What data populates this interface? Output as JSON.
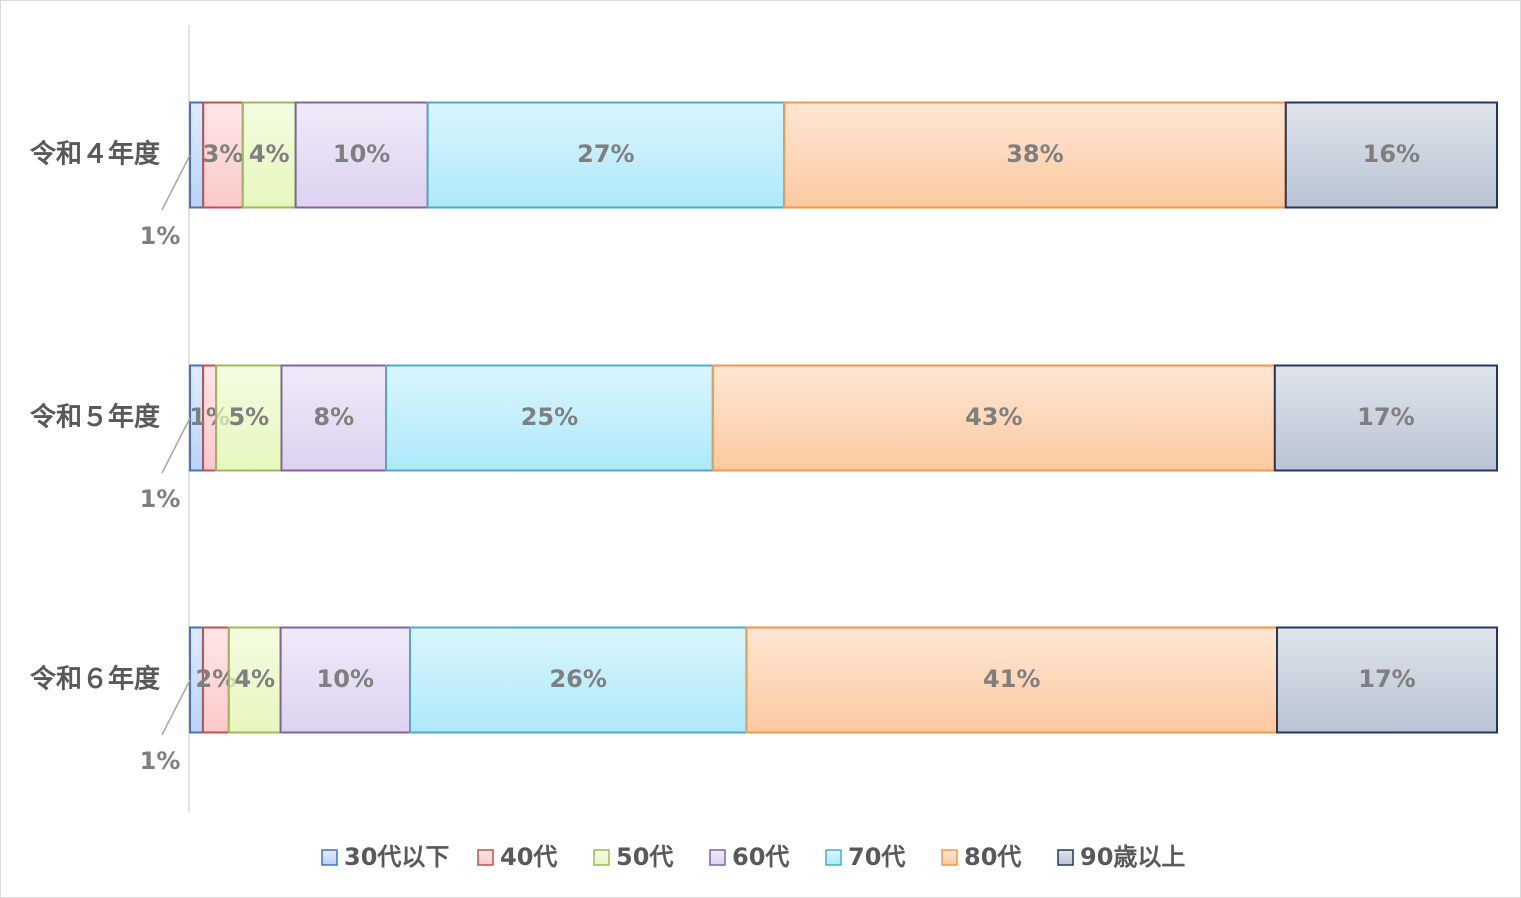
{
  "chart_data": {
    "type": "bar",
    "orientation": "horizontal",
    "stack": "percent",
    "categories": [
      "令和４年度",
      "令和５年度",
      "令和６年度"
    ],
    "series": [
      {
        "name": "30代以下",
        "color": "#4472c4",
        "fill": "#bcd3f5",
        "values": [
          1,
          1,
          1
        ],
        "value_labels": [
          "1%",
          "1%",
          "1%"
        ]
      },
      {
        "name": "40代",
        "color": "#c0504d",
        "fill": "#fcc9c9",
        "values": [
          3,
          1,
          2
        ],
        "value_labels": [
          "3%",
          "1%",
          "2%"
        ]
      },
      {
        "name": "50代",
        "color": "#9bbb59",
        "fill": "#e6f7bd",
        "values": [
          4,
          5,
          4
        ],
        "value_labels": [
          "4%",
          "5%",
          "4%"
        ]
      },
      {
        "name": "60代",
        "color": "#8064a2",
        "fill": "#ddd2f0",
        "values": [
          10,
          8,
          10
        ],
        "value_labels": [
          "10%",
          "8%",
          "10%"
        ]
      },
      {
        "name": "70代",
        "color": "#4bacc6",
        "fill": "#aee9f9",
        "values": [
          27,
          25,
          26
        ],
        "value_labels": [
          "27%",
          "25%",
          "26%"
        ]
      },
      {
        "name": "80代",
        "color": "#f79646",
        "fill": "#fcc9a0",
        "values": [
          38,
          43,
          41
        ],
        "value_labels": [
          "38%",
          "43%",
          "41%"
        ]
      },
      {
        "name": "90歳以上",
        "color": "#1f3864",
        "fill": "#b9c3d3",
        "values": [
          16,
          17,
          17
        ],
        "value_labels": [
          "16%",
          "17%",
          "17%"
        ]
      }
    ]
  }
}
